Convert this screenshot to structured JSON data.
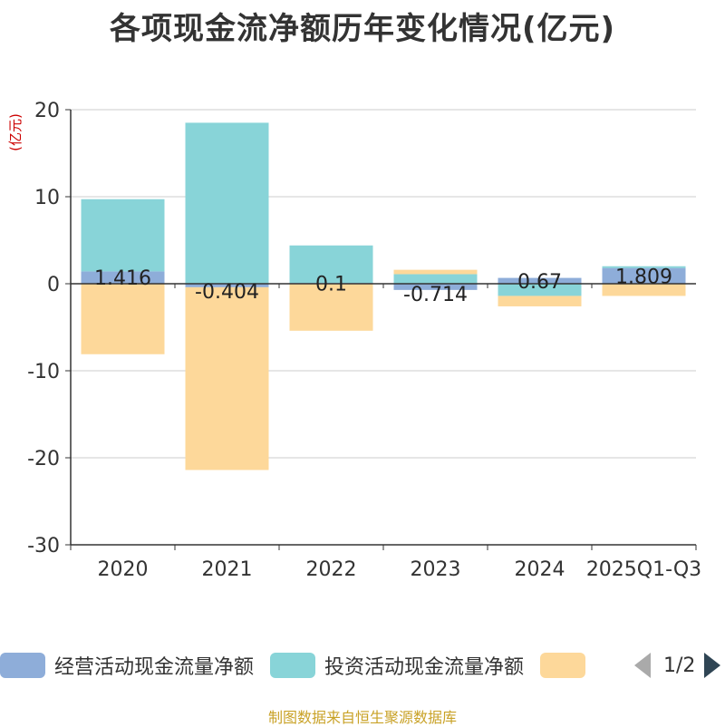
{
  "title": "各项现金流净额历年变化情况(亿元)",
  "source": "制图数据来自恒生聚源数据库",
  "legend": {
    "items": [
      {
        "label": "经营活动现金流量净额",
        "color": "#8eadd9"
      },
      {
        "label": "投资活动现金流量净额",
        "color": "#88d4d8"
      },
      {
        "label": "",
        "color": "#fdd89a"
      }
    ],
    "page": "1/2"
  },
  "chart_data": {
    "type": "bar",
    "stacked": true,
    "title": "各项现金流净额历年变化情况(亿元)",
    "ylabel": "(亿元)",
    "ylim": [
      -30,
      20
    ],
    "yticks": [
      20,
      10,
      0,
      -10,
      -20,
      -30
    ],
    "categories": [
      "2020",
      "2021",
      "2022",
      "2023",
      "2024",
      "2025Q1-Q3"
    ],
    "series": [
      {
        "name": "经营活动现金流量净额",
        "color": "#8eadd9",
        "values": [
          1.416,
          -0.404,
          0.1,
          -0.714,
          0.67,
          1.809
        ],
        "labels": [
          "1.416",
          "-0.404",
          "0.1",
          "-0.714",
          "0.67",
          "1.809"
        ]
      },
      {
        "name": "投资活动现金流量净额",
        "color": "#88d4d8",
        "values": [
          8.3,
          18.5,
          4.3,
          1.1,
          -1.4,
          0.2
        ]
      },
      {
        "name": "",
        "color": "#fdd89a",
        "values": [
          -8.1,
          -21.0,
          -5.4,
          0.5,
          -1.2,
          -1.4
        ]
      }
    ]
  }
}
